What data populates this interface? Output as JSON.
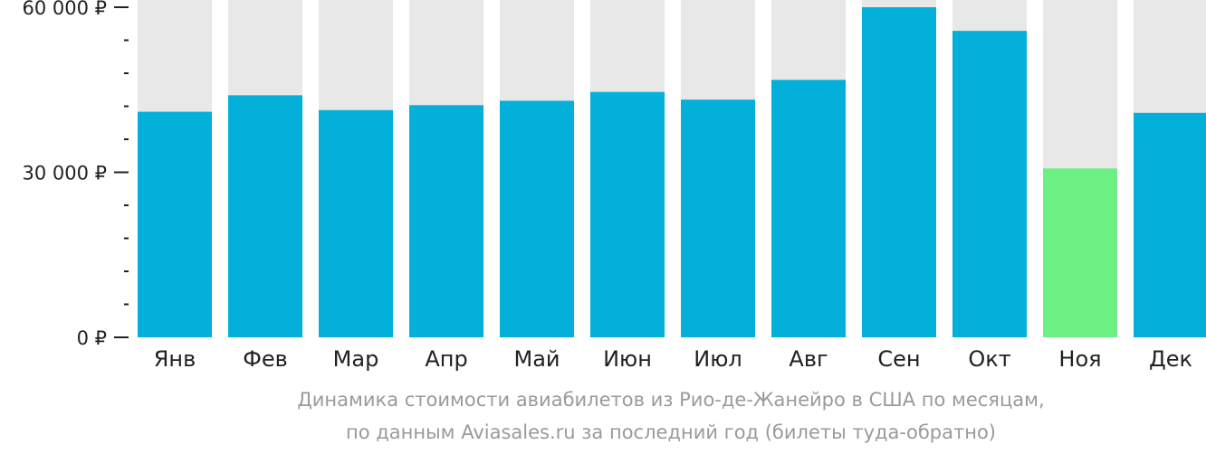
{
  "chart_data": {
    "type": "bar",
    "categories": [
      "Янв",
      "Фев",
      "Мар",
      "Апр",
      "Май",
      "Июн",
      "Июл",
      "Авг",
      "Сен",
      "Окт",
      "Ноя",
      "Дек"
    ],
    "values": [
      41000,
      44000,
      41300,
      42200,
      43000,
      44600,
      43200,
      46800,
      60000,
      55700,
      30700,
      40800
    ],
    "highlight_index": 10,
    "ylim": [
      0,
      60000
    ],
    "yticks": [
      {
        "value": 0,
        "label": "0 ₽"
      },
      {
        "value": 30000,
        "label": "30 000 ₽"
      },
      {
        "value": 60000,
        "label": "60 000 ₽"
      }
    ],
    "minor_tick_step": 6000,
    "colors": {
      "bar": "#03b0da",
      "highlight": "#6cf084",
      "background_bar": "#e8e8e8",
      "axis": "#222222"
    },
    "caption_lines": [
      "Динамика стоимости авиабилетов из Рио-де-Жанейро в США по месяцам,",
      "по данным Aviasales.ru за последний год (билеты туда-обратно)"
    ]
  }
}
